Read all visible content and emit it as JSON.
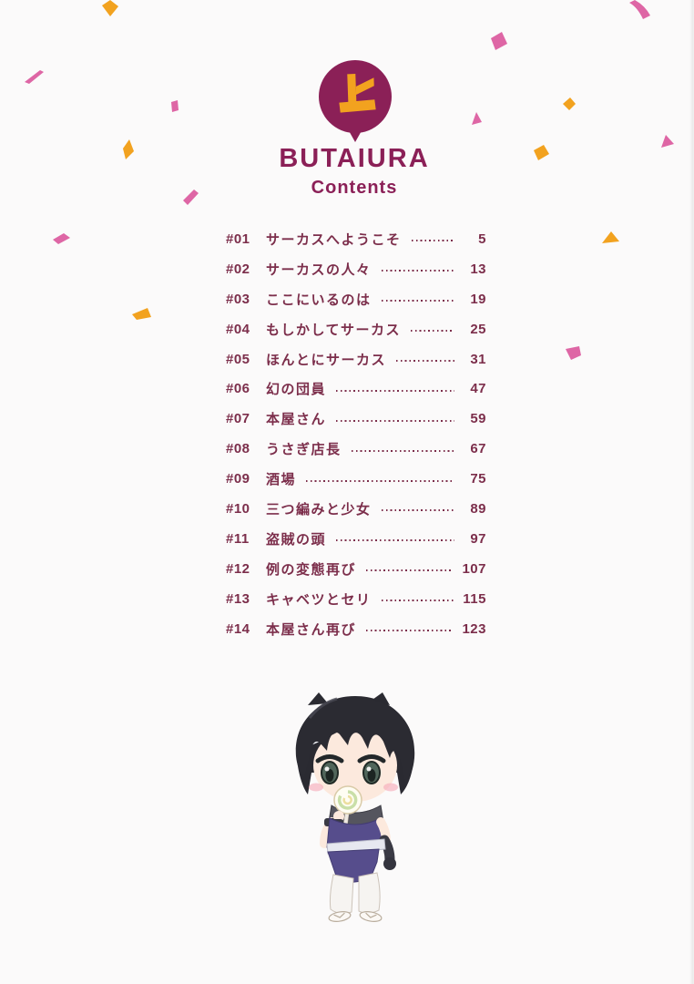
{
  "page": {
    "badge_kanji": "上",
    "title": "BUTAIURA",
    "subtitle": "Contents"
  },
  "toc": {
    "entries": [
      {
        "num": "#01",
        "title": "サーカスへようこそ",
        "page": "5"
      },
      {
        "num": "#02",
        "title": "サーカスの人々",
        "page": "13"
      },
      {
        "num": "#03",
        "title": "ここにいるのは",
        "page": "19"
      },
      {
        "num": "#04",
        "title": "もしかしてサーカス",
        "page": "25"
      },
      {
        "num": "#05",
        "title": "ほんとにサーカス",
        "page": "31"
      },
      {
        "num": "#06",
        "title": "幻の団員",
        "page": "47"
      },
      {
        "num": "#07",
        "title": "本屋さん",
        "page": "59"
      },
      {
        "num": "#08",
        "title": "うさぎ店長",
        "page": "67"
      },
      {
        "num": "#09",
        "title": "酒場",
        "page": "75"
      },
      {
        "num": "#10",
        "title": "三つ編みと少女",
        "page": "89"
      },
      {
        "num": "#11",
        "title": "盗賊の頭",
        "page": "97"
      },
      {
        "num": "#12",
        "title": "例の変態再び",
        "page": "107"
      },
      {
        "num": "#13",
        "title": "キャベツとセリ",
        "page": "115"
      },
      {
        "num": "#14",
        "title": "本屋さん再び",
        "page": "123"
      }
    ]
  },
  "illustration": "chibi-boy-with-lollipop",
  "colors": {
    "magenta": "#8B2057",
    "orange": "#F2A21F",
    "pink": "#DE66A5",
    "text": "#7C2E4B",
    "background": "#FBFAFA"
  }
}
